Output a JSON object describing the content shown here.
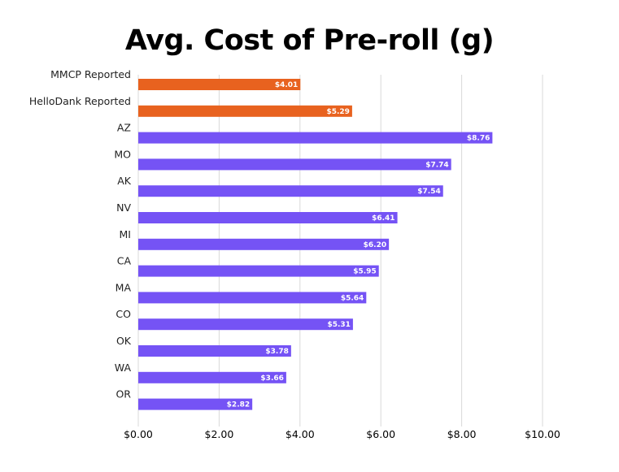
{
  "chart_data": {
    "type": "bar",
    "orientation": "horizontal",
    "title": "Avg. Cost of Pre-roll (g)",
    "xlabel": "",
    "ylabel": "",
    "xlim": [
      0,
      10
    ],
    "grid": true,
    "legend": "none",
    "x_ticks": [
      "$0.00",
      "$2.00",
      "$4.00",
      "$6.00",
      "$8.00",
      "$10.00"
    ],
    "x_tick_values": [
      0,
      2,
      4,
      6,
      8,
      10
    ],
    "categories": [
      "MMCP Reported",
      "HelloDank Reported",
      "AZ",
      "MO",
      "AK",
      "NV",
      "MI",
      "CA",
      "MA",
      "CO",
      "OK",
      "WA",
      "OR"
    ],
    "values": [
      4.01,
      5.29,
      8.76,
      7.74,
      7.54,
      6.41,
      6.2,
      5.95,
      5.64,
      5.31,
      3.78,
      3.66,
      2.82
    ],
    "data_labels": [
      "$4.01",
      "$5.29",
      "$8.76",
      "$7.74",
      "$7.54",
      "$6.41",
      "$6.20",
      "$5.95",
      "$5.64",
      "$5.31",
      "$3.78",
      "$3.66",
      "$2.82"
    ],
    "colors": [
      "#e8621f",
      "#e8621f",
      "#7553f5",
      "#7553f5",
      "#7553f5",
      "#7553f5",
      "#7553f5",
      "#7553f5",
      "#7553f5",
      "#7553f5",
      "#7553f5",
      "#7553f5",
      "#7553f5"
    ]
  }
}
